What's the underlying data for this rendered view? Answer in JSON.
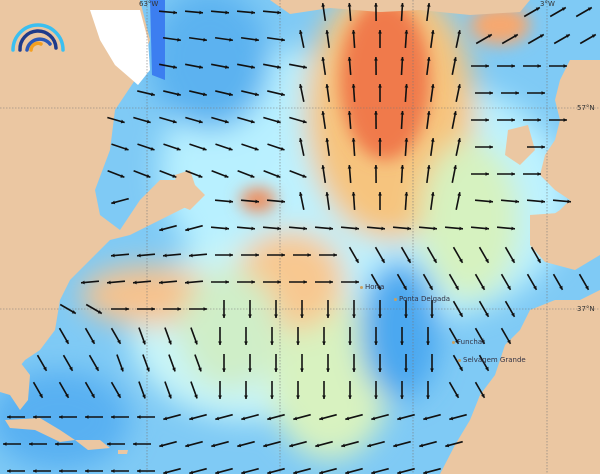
{
  "map": {
    "graticule": {
      "longitudes": [
        {
          "label": "63°W"
        },
        {
          "label": ""
        },
        {
          "label": ""
        },
        {
          "label": "3°W"
        }
      ],
      "latitudes": [
        {
          "label": "57°N"
        },
        {
          "label": "37°N"
        }
      ]
    },
    "places": [
      {
        "name": "Horta"
      },
      {
        "name": "Ponta Delgada"
      },
      {
        "name": "Funchal"
      },
      {
        "name": "Selvagem Grande"
      }
    ],
    "colors": {
      "land": "#ebc7a2",
      "ice": "#ffffff",
      "deep_blue": "#2060e8",
      "blue": "#5ab4f2",
      "light_blue": "#a8e4fb",
      "pale_cyan": "#c8f4ff",
      "green": "#c8f0b4",
      "yellow": "#fbe4a6",
      "orange": "#f9b070",
      "red_orange": "#f07448",
      "arrow": "#111111"
    },
    "logo": {
      "icon": "wave-arcs-logo"
    }
  }
}
